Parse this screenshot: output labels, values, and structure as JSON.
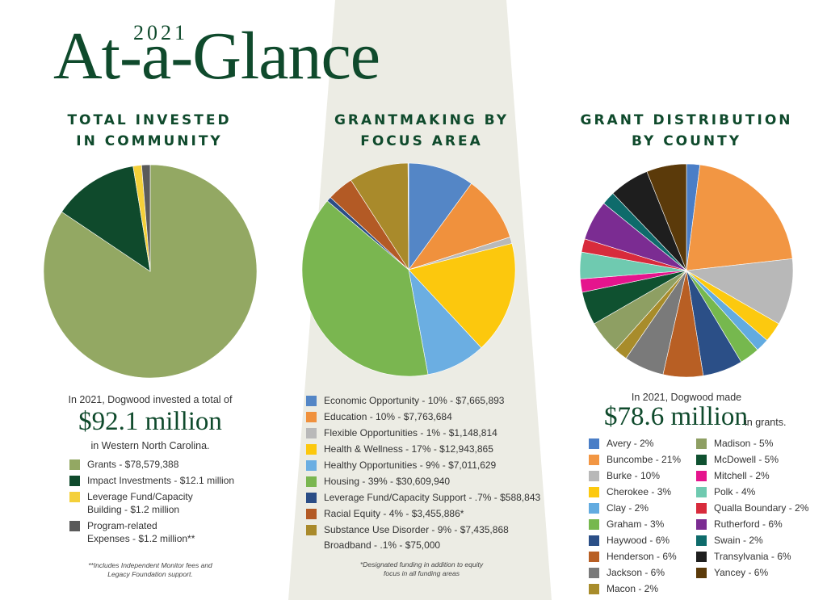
{
  "header": {
    "year": "2021",
    "title": "At-a-Glance"
  },
  "chart_data": [
    {
      "type": "pie",
      "title_lines": [
        "TOTAL INVESTED",
        "IN COMMUNITY"
      ],
      "slices": [
        {
          "name": "Grants",
          "value": 78.6,
          "color": "#93a863"
        },
        {
          "name": "Impact Investments",
          "value": 12.1,
          "color": "#0f4a2c"
        },
        {
          "name": "Leverage Fund/Capacity Building",
          "value": 1.2,
          "color": "#f4d03a"
        },
        {
          "name": "Program-related Expenses",
          "value": 1.2,
          "color": "#5a5a5a"
        }
      ],
      "intro": "In 2021, Dogwood invested a total of",
      "big_value": "$92.1 million",
      "after": "in Western North Carolina.",
      "legend": [
        {
          "lines": [
            "Grants -  $78,579,388"
          ],
          "color": "#93a863"
        },
        {
          "lines": [
            "Impact Investments - $12.1 million"
          ],
          "color": "#0f4a2c"
        },
        {
          "lines": [
            "Leverage Fund/Capacity",
            "Building - $1.2 million"
          ],
          "color": "#f4d03a"
        },
        {
          "lines": [
            "Program-related",
            "Expenses - $1.2 million**"
          ],
          "color": "#5a5a5a"
        }
      ],
      "note_lines": [
        "**Includes Independent Monitor fees and",
        "Legacy Foundation support."
      ]
    },
    {
      "type": "pie",
      "title_lines": [
        "GRANTMAKING BY",
        "FOCUS AREA"
      ],
      "slices": [
        {
          "name": "Economic Opportunity",
          "value": 10,
          "color": "#5486c6"
        },
        {
          "name": "Education",
          "value": 10,
          "color": "#f0913d"
        },
        {
          "name": "Flexible Opportunities",
          "value": 1,
          "color": "#b9b9b9"
        },
        {
          "name": "Health & Wellness",
          "value": 17,
          "color": "#fcc80d"
        },
        {
          "name": "Healthy Opportunities",
          "value": 9,
          "color": "#6baee2"
        },
        {
          "name": "Housing",
          "value": 39,
          "color": "#7ab650"
        },
        {
          "name": "Leverage Fund/Capacity Support",
          "value": 0.7,
          "color": "#2b4d86"
        },
        {
          "name": "Racial Equity",
          "value": 4,
          "color": "#b35a25"
        },
        {
          "name": "Substance Use Disorder",
          "value": 9,
          "color": "#a98a2b"
        },
        {
          "name": "Broadband",
          "value": 0.1,
          "color": "#ffffff"
        }
      ],
      "legend": [
        {
          "lines": [
            "Economic Opportunity - 10% - $7,665,893"
          ],
          "color": "#5486c6"
        },
        {
          "lines": [
            "Education - 10% - $7,763,684"
          ],
          "color": "#f0913d"
        },
        {
          "lines": [
            "Flexible Opportunities - 1% - $1,148,814"
          ],
          "color": "#b9b9b9"
        },
        {
          "lines": [
            "Health & Wellness - 17% - $12,943,865"
          ],
          "color": "#fcc80d"
        },
        {
          "lines": [
            "Healthy Opportunities - 9% - $7,011,629"
          ],
          "color": "#6baee2"
        },
        {
          "lines": [
            "Housing - 39% - $30,609,940"
          ],
          "color": "#7ab650"
        },
        {
          "lines": [
            "Leverage Fund/Capacity Support - .7% - $588,843"
          ],
          "color": "#2b4d86"
        },
        {
          "lines": [
            "Racial Equity - 4% - $3,455,886*"
          ],
          "color": "#b35a25"
        },
        {
          "lines": [
            "Substance Use Disorder - 9% - $7,435,868",
            "Broadband - .1% - $75,000"
          ],
          "color": "#a98a2b"
        }
      ],
      "note_lines": [
        "*Designated funding in addition to equity",
        "focus in all funding areas"
      ]
    },
    {
      "type": "pie",
      "title_lines": [
        "GRANT DISTRIBUTION",
        "BY COUNTY"
      ],
      "slices": [
        {
          "name": "Avery",
          "value": 2,
          "color": "#4a7ec7"
        },
        {
          "name": "Buncombe",
          "value": 21,
          "color": "#f29643"
        },
        {
          "name": "Burke",
          "value": 10,
          "color": "#b8b8b8"
        },
        {
          "name": "Cherokee",
          "value": 3,
          "color": "#fcc90f"
        },
        {
          "name": "Clay",
          "value": 2,
          "color": "#62abe0"
        },
        {
          "name": "Graham",
          "value": 3,
          "color": "#76b84e"
        },
        {
          "name": "Haywood",
          "value": 6,
          "color": "#2b4f87"
        },
        {
          "name": "Henderson",
          "value": 6,
          "color": "#b85f24"
        },
        {
          "name": "Jackson",
          "value": 6,
          "color": "#7a7a7a"
        },
        {
          "name": "Macon",
          "value": 2,
          "color": "#a88c2b"
        },
        {
          "name": "Madison",
          "value": 5,
          "color": "#8e9f63"
        },
        {
          "name": "McDowell",
          "value": 5,
          "color": "#0f5130"
        },
        {
          "name": "Mitchell",
          "value": 2,
          "color": "#e5148d"
        },
        {
          "name": "Polk",
          "value": 4,
          "color": "#6fcab0"
        },
        {
          "name": "Qualla Boundary",
          "value": 2,
          "color": "#d82b3c"
        },
        {
          "name": "Rutherford",
          "value": 6,
          "color": "#7b2c92"
        },
        {
          "name": "Swain",
          "value": 2,
          "color": "#0e6b6b"
        },
        {
          "name": "Transylvania",
          "value": 6,
          "color": "#1e1e1e"
        },
        {
          "name": "Yancey",
          "value": 6,
          "color": "#5b3a0a"
        }
      ],
      "intro": "In 2021, Dogwood made",
      "big_value": "$78.6 million",
      "after": "in grants.",
      "legend_col1": [
        {
          "label": "Avery - 2%",
          "color": "#4a7ec7"
        },
        {
          "label": "Buncombe - 21%",
          "color": "#f29643"
        },
        {
          "label": "Burke - 10%",
          "color": "#b8b8b8"
        },
        {
          "label": "Cherokee - 3%",
          "color": "#fcc90f"
        },
        {
          "label": "Clay - 2%",
          "color": "#62abe0"
        },
        {
          "label": "Graham - 3%",
          "color": "#76b84e"
        },
        {
          "label": "Haywood - 6%",
          "color": "#2b4f87"
        },
        {
          "label": "Henderson - 6%",
          "color": "#b85f24"
        },
        {
          "label": "Jackson - 6%",
          "color": "#7a7a7a"
        },
        {
          "label": "Macon - 2%",
          "color": "#a88c2b"
        }
      ],
      "legend_col2": [
        {
          "label": "Madison - 5%",
          "color": "#8e9f63"
        },
        {
          "label": "McDowell - 5%",
          "color": "#0f5130"
        },
        {
          "label": "Mitchell - 2%",
          "color": "#e5148d"
        },
        {
          "label": "Polk - 4%",
          "color": "#6fcab0"
        },
        {
          "label": "Qualla Boundary - 2%",
          "color": "#d82b3c"
        },
        {
          "label": "Rutherford - 6%",
          "color": "#7b2c92"
        },
        {
          "label": "Swain - 2%",
          "color": "#0e6b6b"
        },
        {
          "label": "Transylvania - 6%",
          "color": "#1e1e1e"
        },
        {
          "label": "Yancey  - 6%",
          "color": "#5b3a0a"
        }
      ]
    }
  ]
}
